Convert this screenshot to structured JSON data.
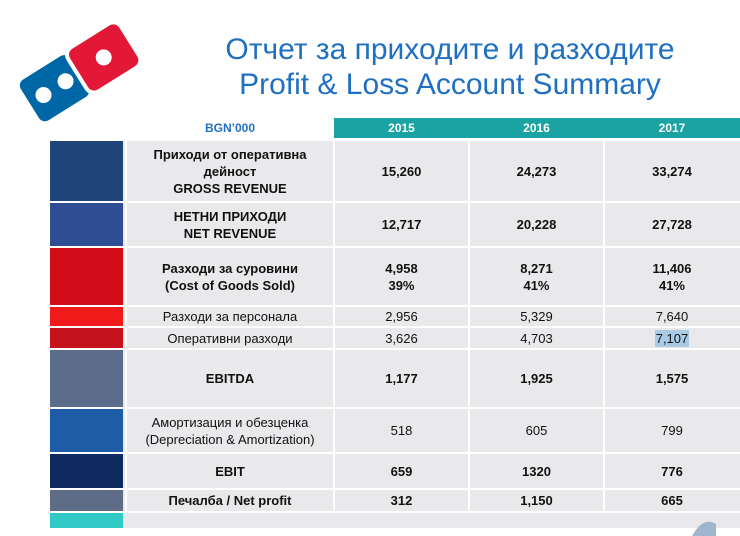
{
  "title": {
    "line1": "Отчет за приходите и разходите",
    "line2": "Profit & Loss Account Summary"
  },
  "table": {
    "unit": "BGN’000",
    "years": [
      "2015",
      "2016",
      "2017"
    ],
    "rows": [
      {
        "label": [
          "Приходи от оперативна",
          "дейност",
          "GROSS REVENUE"
        ],
        "values": [
          "15,260",
          "24,273",
          "33,274"
        ],
        "bold": true,
        "color": "#1f4479"
      },
      {
        "label": [
          "НЕТНИ ПРИХОДИ",
          "NET REVENUE"
        ],
        "values": [
          "12,717",
          "20,228",
          "27,728"
        ],
        "bold": true,
        "color": "#2f4d92"
      },
      {
        "label": [
          "Разходи за суровини",
          "(Cost of Goods Sold)"
        ],
        "values": [
          "4,958\n39%",
          "8,271\n41%",
          "11,406\n41%"
        ],
        "bold": true,
        "color": "#d20d1a"
      },
      {
        "label": [
          "Разходи за персонала"
        ],
        "values": [
          "2,956",
          "5,329",
          "7,640"
        ],
        "bold": false,
        "color": "#f21b1b"
      },
      {
        "label": [
          "Оперативни разходи"
        ],
        "values": [
          "3,626",
          "4,703",
          "7,107"
        ],
        "bold": false,
        "color": "#c5131d"
      },
      {
        "label": [
          "EBITDA"
        ],
        "values": [
          "1,177",
          "1,925",
          "1,575"
        ],
        "bold": true,
        "color": "#5b6d8b"
      },
      {
        "label": [
          "Амортизация и обезценка",
          "(Depreciation & Amortization)"
        ],
        "values": [
          "518",
          "605",
          "799"
        ],
        "bold": false,
        "color": "#1f5ca7"
      },
      {
        "label": [
          "EBIT"
        ],
        "values": [
          "659",
          "1320",
          "776"
        ],
        "bold": true,
        "color": "#0f2a5e"
      },
      {
        "label": [
          "Печалба / Net profit"
        ],
        "values": [
          "312",
          "1,150",
          "665"
        ],
        "bold": true,
        "color": "#5e6c87"
      },
      {
        "label": [
          ""
        ],
        "values": [
          "",
          "",
          ""
        ],
        "bold": false,
        "color": "#31c9c6"
      }
    ]
  },
  "colors": {
    "accent": "#1f70c1",
    "header_teal": "#1ba3a3",
    "logo_red": "#e31837",
    "logo_blue": "#0067a6"
  }
}
